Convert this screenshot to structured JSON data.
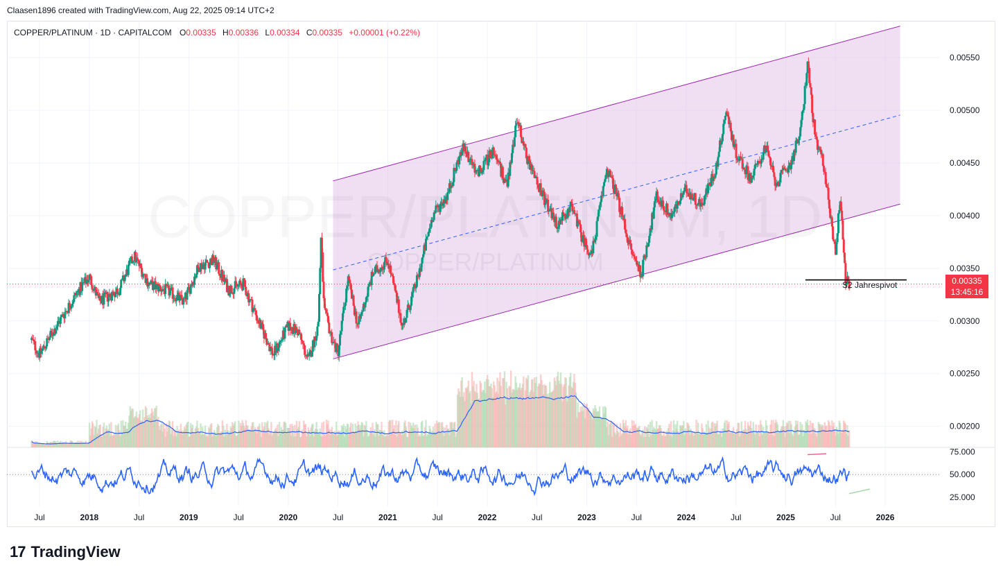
{
  "header": {
    "attribution": "Claasen1896 created with TradingView.com, Aug 22, 2025 09:14 UTC+2"
  },
  "legend": {
    "symbol": "COPPER/PLATINUM · 1D · CAPITALCOM",
    "o_label": "O",
    "o_value": "0.00335",
    "h_label": "H",
    "h_value": "0.00336",
    "l_label": "L",
    "l_value": "0.00334",
    "c_label": "C",
    "c_value": "0.00335",
    "change": "+0.00001 (+0.22%)"
  },
  "watermark": {
    "main": "COPPER/PLATINUM, 1D",
    "sub": "COPPER/PLATINUM"
  },
  "price_badge": {
    "price": "0.00335",
    "countdown": "13:45:16"
  },
  "annotation": {
    "pivot_label": "S2 Jahrespivot"
  },
  "footer": {
    "brand": "TradingView",
    "logo_glyph": "17"
  },
  "colors": {
    "up": "#089981",
    "down": "#f23645",
    "channel": "#9c27b0",
    "channel_fill": "#e1bee7",
    "midline": "#2962ff",
    "indicator": "#2962ff"
  },
  "chart_data": {
    "type": "candlestick",
    "x_ticks": [
      "Jul",
      "2018",
      "Jul",
      "2019",
      "Jul",
      "2020",
      "Jul",
      "2021",
      "Jul",
      "2022",
      "Jul",
      "2023",
      "Jul",
      "2024",
      "Jul",
      "2025",
      "Jul",
      "2026"
    ],
    "y_ticks": [
      "0.00550",
      "0.00500",
      "0.00450",
      "0.00400",
      "0.00350",
      "0.00300",
      "0.00250",
      "0.00200"
    ],
    "y_range": [
      0.0018,
      0.00585
    ],
    "last_price": 0.00335,
    "pivot_level": 0.00339,
    "price_path": [
      [
        2017.42,
        0.00282
      ],
      [
        2017.5,
        0.00268
      ],
      [
        2017.7,
        0.003
      ],
      [
        2017.9,
        0.0033
      ],
      [
        2018.0,
        0.00342
      ],
      [
        2018.1,
        0.00318
      ],
      [
        2018.3,
        0.0033
      ],
      [
        2018.45,
        0.00362
      ],
      [
        2018.6,
        0.00335
      ],
      [
        2018.8,
        0.00328
      ],
      [
        2018.95,
        0.00318
      ],
      [
        2019.1,
        0.00352
      ],
      [
        2019.25,
        0.00358
      ],
      [
        2019.4,
        0.0033
      ],
      [
        2019.55,
        0.00335
      ],
      [
        2019.7,
        0.003
      ],
      [
        2019.85,
        0.00268
      ],
      [
        2020.0,
        0.00295
      ],
      [
        2020.1,
        0.0029
      ],
      [
        2020.2,
        0.00262
      ],
      [
        2020.3,
        0.00295
      ],
      [
        2020.33,
        0.0038
      ],
      [
        2020.36,
        0.0031
      ],
      [
        2020.45,
        0.0028
      ],
      [
        2020.5,
        0.0027
      ],
      [
        2020.6,
        0.0034
      ],
      [
        2020.7,
        0.00295
      ],
      [
        2020.85,
        0.00345
      ],
      [
        2021.0,
        0.00358
      ],
      [
        2021.15,
        0.00295
      ],
      [
        2021.3,
        0.0034
      ],
      [
        2021.45,
        0.004
      ],
      [
        2021.6,
        0.0042
      ],
      [
        2021.75,
        0.00465
      ],
      [
        2021.9,
        0.0044
      ],
      [
        2022.05,
        0.0046
      ],
      [
        2022.2,
        0.0043
      ],
      [
        2022.3,
        0.00492
      ],
      [
        2022.4,
        0.00455
      ],
      [
        2022.55,
        0.0042
      ],
      [
        2022.7,
        0.0039
      ],
      [
        2022.85,
        0.0041
      ],
      [
        2022.95,
        0.0038
      ],
      [
        2023.05,
        0.00362
      ],
      [
        2023.2,
        0.00445
      ],
      [
        2023.3,
        0.0042
      ],
      [
        2023.45,
        0.00365
      ],
      [
        2023.55,
        0.00345
      ],
      [
        2023.7,
        0.00418
      ],
      [
        2023.85,
        0.004
      ],
      [
        2024.0,
        0.00425
      ],
      [
        2024.15,
        0.0041
      ],
      [
        2024.3,
        0.00445
      ],
      [
        2024.4,
        0.005
      ],
      [
        2024.5,
        0.0046
      ],
      [
        2024.65,
        0.00435
      ],
      [
        2024.8,
        0.00465
      ],
      [
        2024.9,
        0.0043
      ],
      [
        2025.05,
        0.0045
      ],
      [
        2025.15,
        0.0048
      ],
      [
        2025.22,
        0.00545
      ],
      [
        2025.3,
        0.0047
      ],
      [
        2025.38,
        0.0045
      ],
      [
        2025.45,
        0.004
      ],
      [
        2025.5,
        0.00365
      ],
      [
        2025.55,
        0.0042
      ],
      [
        2025.6,
        0.00338
      ],
      [
        2025.64,
        0.00335
      ]
    ],
    "channel": {
      "start": [
        2020.45,
        0.00433
      ],
      "end": [
        2026.15,
        0.0058
      ],
      "lower_start": [
        2020.45,
        0.00264
      ],
      "lower_end": [
        2026.15,
        0.00411
      ]
    },
    "rsi": {
      "y_ticks": [
        "75.000",
        "50.000",
        "25.000"
      ],
      "y_range": [
        15,
        80
      ],
      "mid_level": 50
    }
  }
}
